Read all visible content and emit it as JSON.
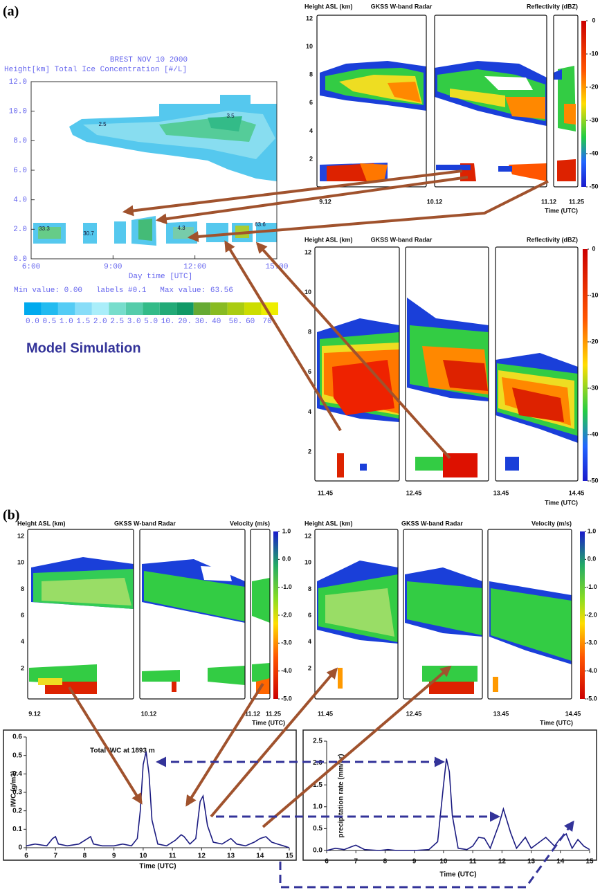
{
  "panel_labels": [
    "(a)",
    "(b)"
  ],
  "model": {
    "title": "BREST NOV 10 2000",
    "subtitle": "Height[km] Total Ice Concentration [#/L]",
    "yticks": [
      {
        "value": 12,
        "label": "12.0"
      },
      {
        "value": 10,
        "label": "10.0"
      },
      {
        "value": 8,
        "label": "8.0"
      },
      {
        "value": 6,
        "label": "6.0"
      },
      {
        "value": 4,
        "label": "4.0"
      },
      {
        "value": 2,
        "label": "2.0"
      },
      {
        "value": 0,
        "label": "0.0"
      }
    ],
    "xticks": [
      "6:00",
      "9:00",
      "12:00",
      "15:00"
    ],
    "xlabel": "Day time [UTC]",
    "stats": "Min value: 0.00   labels #0.1   Max value: 63.56",
    "colorbar_labels": [
      "0.0",
      "0.5",
      "1.0",
      "1.5",
      "2.0",
      "2.5",
      "3.0",
      "5.0",
      "10.",
      "20.",
      "30.",
      "40",
      "50.",
      "60",
      "70."
    ],
    "contour_labels": [
      "2.5",
      "3.5",
      "33.3",
      "30.7",
      "4.3",
      "63.6"
    ],
    "caption": "Model Simulation"
  },
  "radar": [
    {
      "header_left": "Height ASL (km)",
      "header_center": "GKSS W-band Radar",
      "header_right": "Reflectivity (dBZ)",
      "yticks": [
        2,
        4,
        6,
        8,
        10,
        12
      ],
      "colorbar_ticks": [
        0,
        -10,
        -20,
        -30,
        -40,
        -50
      ],
      "times": [
        "9.12",
        "10.12",
        "11.12",
        "11.25"
      ],
      "time_label": "Time (UTC)"
    },
    {
      "header_left": "Height ASL (km)",
      "header_center": "GKSS W-band Radar",
      "header_right": "Reflectivity (dBZ)",
      "yticks": [
        2,
        4,
        6,
        8,
        10,
        12
      ],
      "colorbar_ticks": [
        0,
        -10,
        -20,
        -30,
        -40,
        -50
      ],
      "times": [
        "11.45",
        "12.45",
        "13.45",
        "14.45"
      ],
      "time_label": "Time (UTC)"
    },
    {
      "header_left": "Height ASL (km)",
      "header_center": "GKSS W-band Radar",
      "header_right": "Velocity (m/s)",
      "yticks": [
        2,
        4,
        6,
        8,
        10,
        12
      ],
      "colorbar_ticks": [
        {
          "value": 1,
          "label": "1.0"
        },
        {
          "value": 0,
          "label": "0.0"
        },
        {
          "value": -1,
          "label": "-1.0"
        },
        {
          "value": -2,
          "label": "-2.0"
        },
        {
          "value": -3,
          "label": "-3.0"
        },
        {
          "value": -4,
          "label": "-4.0"
        },
        {
          "value": -5,
          "label": "-5.0"
        }
      ],
      "times": [
        "9.12",
        "10.12",
        "11.12",
        "11.25"
      ],
      "time_label": "Time (UTC)"
    },
    {
      "header_left": "Height ASL (km)",
      "header_center": "GKSS W-band Radar",
      "header_right": "Velocity (m/s)",
      "yticks": [
        2,
        4,
        6,
        8,
        10,
        12
      ],
      "colorbar_ticks": [
        {
          "value": 1,
          "label": "1.0"
        },
        {
          "value": 0,
          "label": "0.0"
        },
        {
          "value": -1,
          "label": "-1.0"
        },
        {
          "value": -2,
          "label": "-2.0"
        },
        {
          "value": -3,
          "label": "-3.0"
        },
        {
          "value": -4,
          "label": "-4.0"
        },
        {
          "value": -5,
          "label": "-5.0"
        }
      ],
      "times": [
        "11.45",
        "12.45",
        "13.45",
        "14.45"
      ],
      "time_label": "Time (UTC)"
    }
  ],
  "chart_data": [
    {
      "type": "line",
      "title": "Total IWC at 1893 m",
      "ylabel": "IWC (g/m3)",
      "xlabel": "Time (UTC)",
      "color": "#1a1a80",
      "x": [
        6,
        6.3,
        6.7,
        6.9,
        7.0,
        7.1,
        7.4,
        7.8,
        8.1,
        8.2,
        8.3,
        8.6,
        9.0,
        9.3,
        9.6,
        9.8,
        9.9,
        10.0,
        10.1,
        10.2,
        10.3,
        10.5,
        10.8,
        11.1,
        11.3,
        11.4,
        11.6,
        11.8,
        11.95,
        12.05,
        12.2,
        12.4,
        12.7,
        13.0,
        13.2,
        13.5,
        13.8,
        14.0,
        14.2,
        14.4,
        14.6,
        14.8,
        15
      ],
      "values": [
        0.01,
        0.02,
        0.01,
        0.05,
        0.06,
        0.02,
        0.01,
        0.02,
        0.05,
        0.06,
        0.02,
        0.01,
        0.01,
        0.02,
        0.01,
        0.05,
        0.2,
        0.45,
        0.52,
        0.4,
        0.15,
        0.02,
        0.01,
        0.04,
        0.07,
        0.06,
        0.02,
        0.05,
        0.25,
        0.28,
        0.12,
        0.03,
        0.02,
        0.05,
        0.02,
        0.01,
        0.03,
        0.05,
        0.06,
        0.03,
        0.02,
        0.01,
        0.0
      ],
      "xlim": [
        6,
        15
      ],
      "ylim": [
        0,
        0.6
      ],
      "xticks": [
        6,
        7,
        8,
        9,
        10,
        11,
        12,
        13,
        14,
        15
      ],
      "yticks": [
        0,
        0.1,
        0.2,
        0.3,
        0.4,
        0.5,
        0.6
      ]
    },
    {
      "type": "line",
      "ylabel": "precipitation rate (mm/hr)",
      "xlabel": "Time (UTC)",
      "color": "#1a1a80",
      "x": [
        6,
        6.3,
        6.6,
        6.9,
        7.0,
        7.3,
        7.8,
        8.1,
        8.4,
        9.0,
        9.5,
        9.8,
        10.0,
        10.1,
        10.2,
        10.3,
        10.5,
        10.8,
        11.0,
        11.2,
        11.4,
        11.6,
        11.9,
        12.05,
        12.3,
        12.5,
        12.8,
        13.0,
        13.2,
        13.5,
        13.8,
        14.0,
        14.2,
        14.4,
        14.6,
        14.8,
        15
      ],
      "values": [
        0.0,
        0.05,
        0.02,
        0.1,
        0.12,
        0.02,
        0.0,
        0.02,
        0.0,
        0.0,
        0.02,
        0.2,
        1.5,
        2.1,
        1.8,
        0.8,
        0.05,
        0.02,
        0.1,
        0.3,
        0.28,
        0.05,
        0.6,
        0.95,
        0.4,
        0.05,
        0.3,
        0.05,
        0.15,
        0.3,
        0.1,
        0.28,
        0.38,
        0.05,
        0.25,
        0.1,
        0.02
      ],
      "xlim": [
        6,
        15
      ],
      "ylim": [
        0,
        2.5
      ],
      "xticks": [
        6,
        7,
        8,
        9,
        10,
        11,
        12,
        13,
        14,
        15
      ],
      "yticks": [
        {
          "value": 0,
          "label": "0.0"
        },
        0.5,
        {
          "value": 1,
          "label": "1.0"
        },
        1.5,
        {
          "value": 2,
          "label": "2.0"
        },
        2.5
      ]
    }
  ]
}
